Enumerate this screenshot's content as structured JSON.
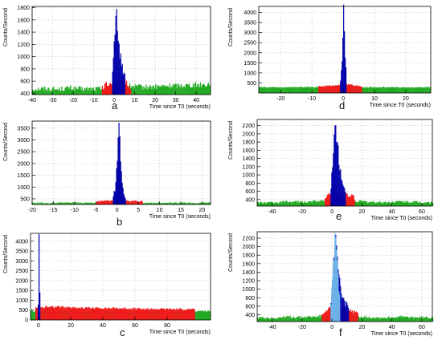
{
  "chart_data": [
    {
      "panel": "a",
      "type": "bar",
      "ylabel": "Counts/Second",
      "xlabel": "Time since T0 (seconds)",
      "xlim": [
        -40,
        47
      ],
      "ylim": [
        380,
        1820
      ],
      "xticks": [
        -40,
        -30,
        -20,
        -10,
        0,
        10,
        20,
        30,
        40
      ],
      "yticks": [
        400,
        600,
        800,
        1000,
        1200,
        1400,
        1600,
        1800
      ],
      "grid": true,
      "baseline": 470,
      "series": [
        {
          "color": "#22aa22",
          "x": [
            -40,
            -34,
            -28,
            -22,
            -16,
            -10,
            -6,
            8,
            14,
            20,
            26,
            32,
            38,
            44,
            47
          ],
          "values": [
            470,
            480,
            465,
            490,
            470,
            475,
            480,
            520,
            500,
            510,
            520,
            530,
            540,
            545,
            560
          ]
        },
        {
          "color": "#ee1c1c",
          "x": [
            -6,
            -4,
            -2,
            -1,
            5,
            6,
            7,
            8
          ],
          "values": [
            500,
            540,
            560,
            600,
            620,
            560,
            520,
            500
          ]
        },
        {
          "color": "#0000aa",
          "x": [
            -1,
            -0.5,
            0,
            0.5,
            1,
            1.5,
            2,
            2.5,
            3,
            3.5,
            4,
            4.5,
            5
          ],
          "values": [
            700,
            1000,
            1400,
            1750,
            1600,
            1300,
            1200,
            1100,
            1000,
            900,
            800,
            700,
            650
          ]
        }
      ]
    },
    {
      "panel": "b",
      "type": "bar",
      "ylabel": "Counts/Second",
      "xlabel": "Time since T0 (seconds)",
      "xlim": [
        -20,
        22
      ],
      "ylim": [
        260,
        3800
      ],
      "xticks": [
        -20,
        -15,
        -10,
        -5,
        0,
        5,
        10,
        15,
        20
      ],
      "yticks": [
        500,
        1000,
        1500,
        2000,
        2500,
        3000,
        3500
      ],
      "grid": true,
      "baseline": 330,
      "series": [
        {
          "color": "#22aa22",
          "x": [
            -20,
            -16,
            -12,
            -8,
            -5,
            6,
            10,
            14,
            18,
            22
          ],
          "values": [
            330,
            320,
            340,
            330,
            340,
            330,
            320,
            330,
            320,
            330
          ]
        },
        {
          "color": "#ee1c1c",
          "x": [
            -5,
            -3,
            -1,
            2,
            4,
            6
          ],
          "values": [
            380,
            400,
            430,
            420,
            400,
            380
          ]
        },
        {
          "color": "#0000aa",
          "x": [
            -1,
            -0.5,
            0,
            0.2,
            0.5,
            0.8,
            1,
            1.5,
            2
          ],
          "values": [
            600,
            1000,
            2500,
            3650,
            3000,
            2000,
            1200,
            700,
            450
          ]
        }
      ]
    },
    {
      "panel": "c",
      "type": "bar",
      "ylabel": "Counts/Second",
      "xlabel": "Time since T0 (seconds)",
      "xlim": [
        -5,
        107
      ],
      "ylim": [
        0,
        4400
      ],
      "xticks": [
        0,
        20,
        40,
        60,
        80
      ],
      "yticks": [
        0,
        500,
        1000,
        1500,
        2000,
        2500,
        3000,
        3500,
        4000
      ],
      "grid": true,
      "baseline": 450,
      "series": [
        {
          "color": "#22aa22",
          "x": [
            -5,
            -2,
            97,
            100,
            103,
            107
          ],
          "values": [
            450,
            430,
            440,
            460,
            450,
            440
          ]
        },
        {
          "color": "#ee1c1c",
          "x": [
            -2,
            5,
            15,
            25,
            35,
            45,
            55,
            65,
            75,
            85,
            95,
            97
          ],
          "values": [
            600,
            680,
            660,
            620,
            610,
            600,
            590,
            560,
            560,
            550,
            540,
            520
          ]
        },
        {
          "color": "#0000aa",
          "x": [
            -0.5,
            0,
            0.3,
            0.6
          ],
          "values": [
            800,
            4250,
            3000,
            900
          ]
        }
      ]
    },
    {
      "panel": "d",
      "type": "bar",
      "ylabel": "Counts/Second",
      "xlabel": "Time since T0 (seconds)",
      "xlim": [
        -27,
        28
      ],
      "ylim": [
        0,
        4300
      ],
      "xticks": [
        -20,
        -10,
        0,
        10,
        20
      ],
      "yticks": [
        500,
        1000,
        1500,
        2000,
        2500,
        3000,
        3500,
        4000
      ],
      "grid": true,
      "baseline": 280,
      "series": [
        {
          "color": "#22aa22",
          "x": [
            -27,
            -20,
            -13,
            -8,
            6,
            12,
            18,
            24,
            28
          ],
          "values": [
            290,
            280,
            300,
            290,
            280,
            290,
            280,
            290,
            280
          ]
        },
        {
          "color": "#ee1c1c",
          "x": [
            -8,
            -5,
            -2,
            -1,
            1,
            3,
            6
          ],
          "values": [
            330,
            360,
            380,
            420,
            420,
            380,
            340
          ]
        },
        {
          "color": "#0000aa",
          "x": [
            -1,
            -0.5,
            0,
            0.3,
            0.6,
            1
          ],
          "values": [
            600,
            1500,
            4200,
            3000,
            1500,
            600
          ]
        }
      ]
    },
    {
      "panel": "e",
      "type": "bar",
      "ylabel": "Counts/Second",
      "xlabel": "Time since T0 (seconds)",
      "xlim": [
        -50,
        67
      ],
      "ylim": [
        240,
        2350
      ],
      "xticks": [
        -40,
        -20,
        0,
        20,
        40,
        60
      ],
      "yticks": [
        400,
        600,
        800,
        1000,
        1200,
        1400,
        1600,
        1800,
        2000,
        2200
      ],
      "grid": true,
      "baseline": 330,
      "series": [
        {
          "color": "#22aa22",
          "x": [
            -50,
            -40,
            -30,
            -20,
            -10,
            -5,
            15,
            25,
            35,
            45,
            55,
            67
          ],
          "values": [
            330,
            320,
            350,
            340,
            360,
            370,
            360,
            340,
            330,
            350,
            340,
            330
          ]
        },
        {
          "color": "#ee1c1c",
          "x": [
            -5,
            -3,
            -1,
            9,
            11,
            13,
            15
          ],
          "values": [
            450,
            500,
            550,
            520,
            480,
            520,
            420
          ]
        },
        {
          "color": "#0000aa",
          "x": [
            -1,
            0,
            1,
            2,
            3,
            4,
            5,
            6,
            7,
            8,
            9
          ],
          "values": [
            700,
            1200,
            1800,
            2300,
            1900,
            1500,
            1100,
            900,
            800,
            700,
            600
          ]
        }
      ]
    },
    {
      "panel": "f",
      "type": "bar",
      "ylabel": "Counts/Second",
      "xlabel": "Time since T0 (seconds)",
      "xlim": [
        -50,
        67
      ],
      "ylim": [
        240,
        2350
      ],
      "xticks": [
        -40,
        -20,
        0,
        20,
        40,
        60
      ],
      "yticks": [
        400,
        600,
        800,
        1000,
        1200,
        1400,
        1600,
        1800,
        2000,
        2200
      ],
      "grid": true,
      "baseline": 330,
      "series": [
        {
          "color": "#22aa22",
          "x": [
            -50,
            -40,
            -30,
            -20,
            -10,
            -7,
            17,
            25,
            35,
            45,
            55,
            67
          ],
          "values": [
            330,
            320,
            350,
            340,
            360,
            370,
            360,
            340,
            330,
            350,
            340,
            330
          ]
        },
        {
          "color": "#ee1c1c",
          "x": [
            -7,
            -5,
            -3,
            -1,
            11,
            13,
            15,
            17
          ],
          "values": [
            420,
            480,
            520,
            560,
            520,
            480,
            460,
            420
          ]
        },
        {
          "color": "#0000aa",
          "x": [
            -1,
            0,
            1,
            2,
            3,
            4,
            5,
            6,
            7,
            8,
            9,
            10,
            11
          ],
          "values": [
            700,
            1200,
            1800,
            2300,
            1900,
            1500,
            1100,
            900,
            800,
            700,
            650,
            600,
            550
          ]
        },
        {
          "color": "#6fb6ea",
          "x": [
            -1,
            0,
            1,
            2,
            3,
            4,
            5
          ],
          "values": [
            700,
            1200,
            1800,
            2250,
            1700,
            1200,
            800
          ]
        }
      ]
    }
  ]
}
